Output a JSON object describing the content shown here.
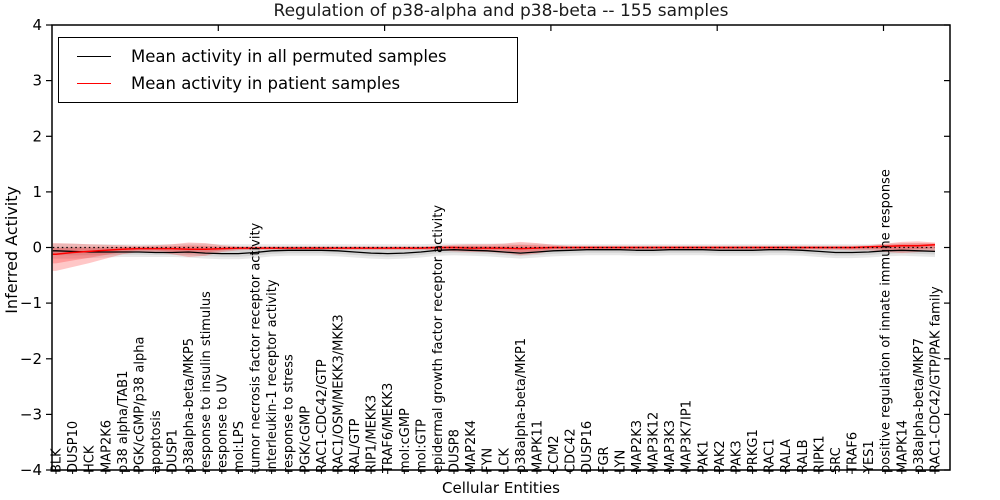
{
  "figure": {
    "background": "#ffffff"
  },
  "chart_data": {
    "type": "line",
    "title": "Regulation of p38-alpha and p38-beta -- 155 samples",
    "xlabel": "Cellular Entities",
    "ylabel": "Inferred Activity",
    "sample_count_in_title": 155,
    "ylim": [
      -4,
      4
    ],
    "yticks": [
      -4,
      -3,
      -2,
      -1,
      0,
      1,
      2,
      3,
      4
    ],
    "xticks_major": [
      10,
      20,
      30,
      40,
      50
    ],
    "grid": false,
    "legend_position": "upper left",
    "zero_line": 0,
    "colors": {
      "permuted": "#000000",
      "patient": "#ff0000",
      "permuted_band": "#000000",
      "patient_band": "#ff0000"
    },
    "categories": [
      "BLK",
      "DUSP10",
      "HCK",
      "MAP2K6",
      "p38 alpha/TAB1",
      "PGK/cGMP/p38 alpha",
      "apoptosis",
      "DUSP1",
      "p38alpha-beta/MKP5",
      "response to insulin stimulus",
      "response to UV",
      "mol:LPS",
      "tumor necrosis factor receptor activity",
      "interleukin-1 receptor activity",
      "response to stress",
      "PGK/cGMP",
      "RAC1-CDC42/GTP",
      "RAC1/OSM/MEKK3/MKK3",
      "RAL/GTP",
      "RIP1/MEKK3",
      "TRAF6/MEKK3",
      "mol:cGMP",
      "mol:GTP",
      "epidermal growth factor receptor activity",
      "DUSP8",
      "MAP2K4",
      "FYN",
      "LCK",
      "p38alpha-beta/MKP1",
      "MAPK11",
      "CCM2",
      "CDC42",
      "DUSP16",
      "FGR",
      "LYN",
      "MAP2K3",
      "MAP3K12",
      "MAP3K3",
      "MAP3K7IP1",
      "PAK1",
      "PAK2",
      "PAK3",
      "PRKG1",
      "RAC1",
      "RALA",
      "RALB",
      "RIPK1",
      "SRC",
      "TRAF6",
      "YES1",
      "positive regulation of innate immune response",
      "MAPK14",
      "p38alpha-beta/MKP7",
      "RAC1-CDC42/GTP/PAK family"
    ],
    "series": [
      {
        "name": "Mean activity in all permuted samples",
        "color": "#000000",
        "values": [
          -0.06,
          -0.07,
          -0.08,
          -0.08,
          -0.08,
          -0.08,
          -0.09,
          -0.09,
          -0.08,
          -0.1,
          -0.11,
          -0.11,
          -0.09,
          -0.06,
          -0.05,
          -0.05,
          -0.05,
          -0.06,
          -0.08,
          -0.1,
          -0.11,
          -0.1,
          -0.08,
          -0.05,
          -0.04,
          -0.05,
          -0.06,
          -0.08,
          -0.1,
          -0.08,
          -0.06,
          -0.05,
          -0.04,
          -0.04,
          -0.04,
          -0.05,
          -0.05,
          -0.04,
          -0.04,
          -0.04,
          -0.05,
          -0.05,
          -0.05,
          -0.04,
          -0.04,
          -0.05,
          -0.07,
          -0.09,
          -0.09,
          -0.08,
          -0.06,
          -0.05,
          -0.06,
          -0.07
        ]
      },
      {
        "name": "Mean activity in patient samples",
        "color": "#ff0000",
        "values": [
          -0.12,
          -0.09,
          -0.07,
          -0.05,
          -0.03,
          -0.02,
          -0.02,
          -0.02,
          -0.03,
          -0.03,
          -0.02,
          -0.01,
          -0.01,
          -0.01,
          -0.01,
          -0.01,
          -0.01,
          -0.01,
          -0.01,
          -0.01,
          -0.01,
          -0.01,
          -0.01,
          0.0,
          0.0,
          -0.01,
          -0.01,
          -0.01,
          -0.02,
          -0.01,
          0.0,
          0.0,
          0.0,
          0.0,
          0.0,
          0.0,
          0.0,
          0.0,
          0.0,
          0.0,
          0.0,
          0.0,
          0.0,
          0.0,
          0.0,
          0.0,
          0.0,
          0.0,
          0.0,
          0.01,
          0.02,
          0.03,
          0.03,
          0.05
        ]
      }
    ],
    "bands": [
      {
        "name": "permuted samples range",
        "color": "#000000",
        "opacity": 0.09,
        "hi": [
          0.07,
          0.07,
          0.06,
          0.06,
          0.06,
          0.06,
          0.06,
          0.06,
          0.07,
          0.07,
          0.06,
          0.06,
          0.06,
          0.06,
          0.06,
          0.06,
          0.06,
          0.06,
          0.06,
          0.06,
          0.06,
          0.06,
          0.06,
          0.07,
          0.07,
          0.07,
          0.07,
          0.07,
          0.07,
          0.07,
          0.06,
          0.06,
          0.06,
          0.06,
          0.06,
          0.06,
          0.06,
          0.06,
          0.06,
          0.06,
          0.06,
          0.06,
          0.06,
          0.06,
          0.06,
          0.06,
          0.06,
          0.06,
          0.06,
          0.06,
          0.07,
          0.08,
          0.08,
          0.07
        ],
        "lo": [
          -0.2,
          -0.2,
          -0.19,
          -0.18,
          -0.17,
          -0.17,
          -0.17,
          -0.17,
          -0.18,
          -0.2,
          -0.21,
          -0.21,
          -0.19,
          -0.16,
          -0.15,
          -0.15,
          -0.15,
          -0.16,
          -0.18,
          -0.2,
          -0.21,
          -0.2,
          -0.18,
          -0.15,
          -0.14,
          -0.15,
          -0.16,
          -0.18,
          -0.2,
          -0.18,
          -0.16,
          -0.15,
          -0.14,
          -0.14,
          -0.14,
          -0.15,
          -0.15,
          -0.14,
          -0.14,
          -0.14,
          -0.15,
          -0.15,
          -0.15,
          -0.14,
          -0.14,
          -0.15,
          -0.17,
          -0.19,
          -0.19,
          -0.18,
          -0.16,
          -0.15,
          -0.16,
          -0.17
        ]
      },
      {
        "name": "patient samples range",
        "color": "#ff0000",
        "opacity": 0.22,
        "hi": [
          0.08,
          0.07,
          0.06,
          0.05,
          0.04,
          0.03,
          0.04,
          0.06,
          0.09,
          0.08,
          0.04,
          0.02,
          0.02,
          0.02,
          0.02,
          0.02,
          0.02,
          0.02,
          0.02,
          0.02,
          0.02,
          0.02,
          0.02,
          0.03,
          0.05,
          0.06,
          0.06,
          0.07,
          0.1,
          0.08,
          0.05,
          0.03,
          0.03,
          0.03,
          0.03,
          0.03,
          0.03,
          0.03,
          0.03,
          0.03,
          0.03,
          0.03,
          0.03,
          0.03,
          0.03,
          0.03,
          0.03,
          0.03,
          0.03,
          0.04,
          0.07,
          0.1,
          0.11,
          0.09
        ],
        "lo": [
          -0.42,
          -0.35,
          -0.28,
          -0.2,
          -0.12,
          -0.08,
          -0.08,
          -0.12,
          -0.17,
          -0.15,
          -0.08,
          -0.05,
          -0.04,
          -0.04,
          -0.04,
          -0.04,
          -0.04,
          -0.04,
          -0.04,
          -0.04,
          -0.04,
          -0.04,
          -0.04,
          -0.05,
          -0.07,
          -0.08,
          -0.08,
          -0.1,
          -0.14,
          -0.11,
          -0.06,
          -0.04,
          -0.04,
          -0.04,
          -0.04,
          -0.04,
          -0.04,
          -0.04,
          -0.04,
          -0.04,
          -0.04,
          -0.04,
          -0.04,
          -0.04,
          -0.04,
          -0.04,
          -0.04,
          -0.04,
          -0.05,
          -0.05,
          -0.08,
          -0.1,
          -0.08,
          -0.06
        ]
      }
    ]
  }
}
